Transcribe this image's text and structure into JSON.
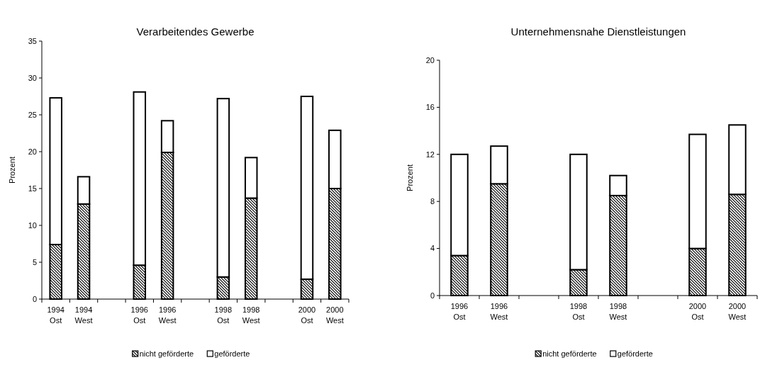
{
  "chart_data": [
    {
      "type": "bar",
      "title": "Verarbeitendes Gewerbe",
      "ylabel": "Prozent",
      "stacked": true,
      "legend": "bottom",
      "categories": [
        "1994 Ost",
        "1994 West",
        null,
        "1996 Ost",
        "1996 West",
        null,
        "1998 Ost",
        "1998 West",
        null,
        "2000 Ost",
        "2000 West"
      ],
      "series": [
        {
          "name": "nicht geförderte",
          "color": "#000000",
          "values": [
            7.4,
            12.9,
            null,
            4.6,
            19.9,
            null,
            3.0,
            13.7,
            null,
            2.7,
            15.0
          ]
        },
        {
          "name": "geförderte",
          "color": "#ffffff",
          "values": [
            19.9,
            3.7,
            null,
            23.5,
            4.3,
            null,
            24.2,
            5.5,
            null,
            24.8,
            7.9
          ]
        }
      ],
      "ylim": [
        0,
        35
      ],
      "yticks": [
        0,
        5,
        10,
        15,
        20,
        25,
        30,
        35
      ]
    },
    {
      "type": "bar",
      "title": "Unternehmensnahe Dienstleistungen",
      "ylabel": "Prozent",
      "stacked": true,
      "legend": "bottom",
      "categories": [
        "1996 Ost",
        "1996 West",
        null,
        "1998 Ost",
        "1998 West",
        null,
        "2000 Ost",
        "2000 West"
      ],
      "series": [
        {
          "name": "nicht geförderte",
          "color": "#000000",
          "values": [
            3.4,
            9.5,
            null,
            2.2,
            8.5,
            null,
            4.0,
            8.6
          ]
        },
        {
          "name": "geförderte",
          "color": "#ffffff",
          "values": [
            8.6,
            3.2,
            null,
            9.8,
            1.7,
            null,
            9.7,
            5.9
          ]
        }
      ],
      "ylim": [
        0,
        20
      ],
      "yticks": [
        0,
        4,
        8,
        12,
        16,
        20
      ]
    }
  ]
}
